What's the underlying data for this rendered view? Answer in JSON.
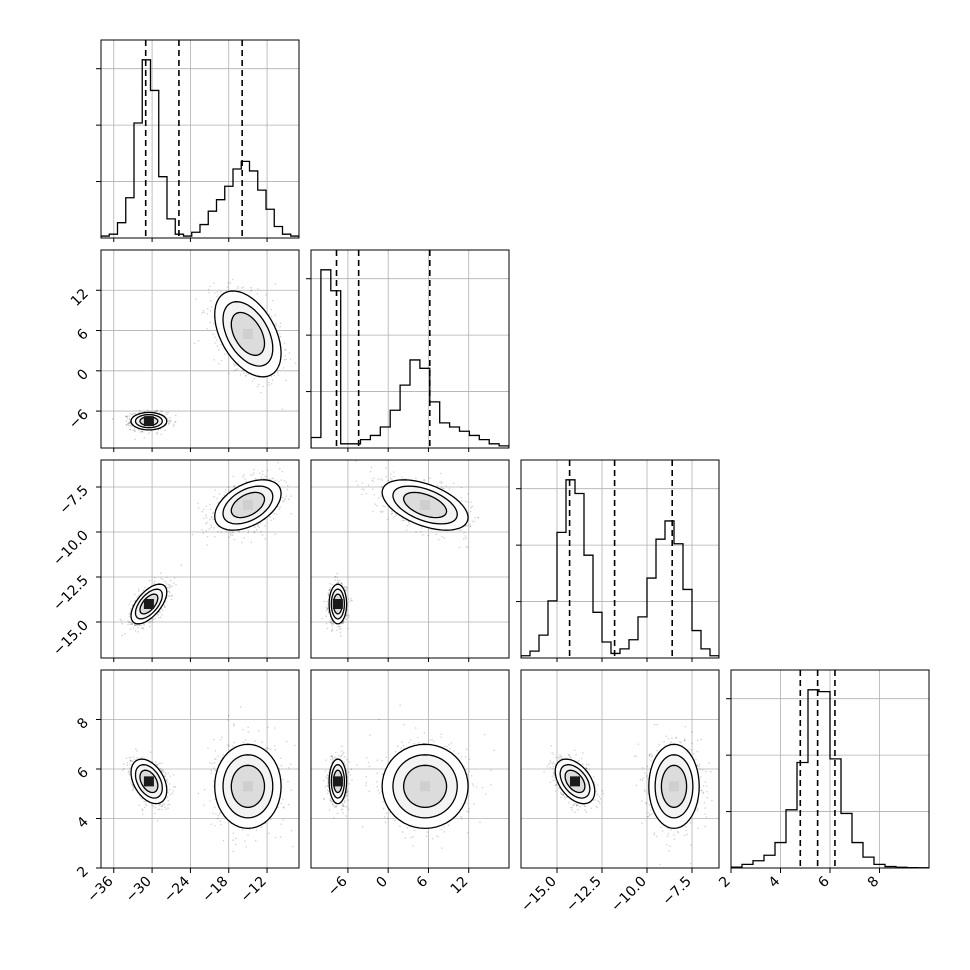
{
  "chart_data": {
    "type": "corner",
    "title": "",
    "parameters": [
      {
        "range": [
          -38,
          -7
        ],
        "ticks": [
          -36,
          -30,
          -24,
          -18,
          -12
        ],
        "tick_labels": [
          "−36",
          "−30",
          "−24",
          "−18",
          "−12"
        ],
        "quantiles": [
          -31.0,
          -25.8,
          -15.9
        ],
        "hist": [
          0.01,
          0.02,
          0.08,
          0.21,
          0.6,
          0.93,
          0.77,
          0.32,
          0.1,
          0.02,
          0.01,
          0.03,
          0.07,
          0.14,
          0.2,
          0.27,
          0.36,
          0.4,
          0.35,
          0.25,
          0.15,
          0.06,
          0.02,
          0.01
        ]
      },
      {
        "range": [
          -11.5,
          18
        ],
        "ticks": [
          -6,
          0,
          6,
          12
        ],
        "tick_labels": [
          "−6",
          "0",
          "6",
          "12"
        ],
        "quantiles": [
          -7.7,
          -4.4,
          6.2
        ],
        "hist": [
          0.05,
          0.85,
          0.75,
          0.02,
          0.02,
          0.04,
          0.06,
          0.1,
          0.18,
          0.3,
          0.42,
          0.38,
          0.22,
          0.12,
          0.1,
          0.08,
          0.06,
          0.04,
          0.02,
          0.01
        ]
      },
      {
        "range": [
          -17,
          -6
        ],
        "ticks": [
          -15.0,
          -12.5,
          -10.0,
          -7.5
        ],
        "tick_labels": [
          "−15.0",
          "−12.5",
          "−10.0",
          "−7.5"
        ],
        "quantiles": [
          -14.3,
          -11.8,
          -8.6
        ],
        "hist": [
          0.01,
          0.03,
          0.1,
          0.25,
          0.55,
          0.78,
          0.72,
          0.45,
          0.2,
          0.07,
          0.02,
          0.04,
          0.08,
          0.18,
          0.35,
          0.52,
          0.6,
          0.5,
          0.3,
          0.12,
          0.04,
          0.01
        ]
      },
      {
        "range": [
          2.0,
          10.0
        ],
        "ticks": [
          2,
          4,
          6,
          8
        ],
        "tick_labels": [
          "2",
          "4",
          "6",
          "8"
        ],
        "quantiles": [
          4.8,
          5.5,
          6.2
        ],
        "hist": [
          0.005,
          0.02,
          0.04,
          0.07,
          0.14,
          0.32,
          0.58,
          0.98,
          0.97,
          0.6,
          0.3,
          0.14,
          0.06,
          0.02,
          0.008,
          0.004,
          0.002,
          0.001
        ]
      }
    ],
    "modes": [
      {
        "center": [
          -30.5,
          -7.5,
          -14.0,
          5.5
        ],
        "spread": [
          1.4,
          0.65,
          0.55,
          0.45
        ],
        "weight": 0.5
      },
      {
        "center": [
          -15.0,
          5.5,
          -8.5,
          5.3
        ],
        "spread": [
          2.6,
          3.2,
          0.7,
          0.85
        ],
        "weight": 0.5
      }
    ],
    "correlations": [
      {
        "pair": [
          1,
          0
        ],
        "mode": 1,
        "rho": -0.45
      },
      {
        "pair": [
          2,
          0
        ],
        "mode": 0,
        "rho": 0.6
      },
      {
        "pair": [
          2,
          0
        ],
        "mode": 1,
        "rho": 0.45
      },
      {
        "pair": [
          2,
          1
        ],
        "mode": 1,
        "rho": -0.5
      },
      {
        "pair": [
          3,
          0
        ],
        "mode": 0,
        "rho": -0.4
      },
      {
        "pair": [
          3,
          2
        ],
        "mode": 0,
        "rho": -0.45
      }
    ],
    "grid": true
  }
}
